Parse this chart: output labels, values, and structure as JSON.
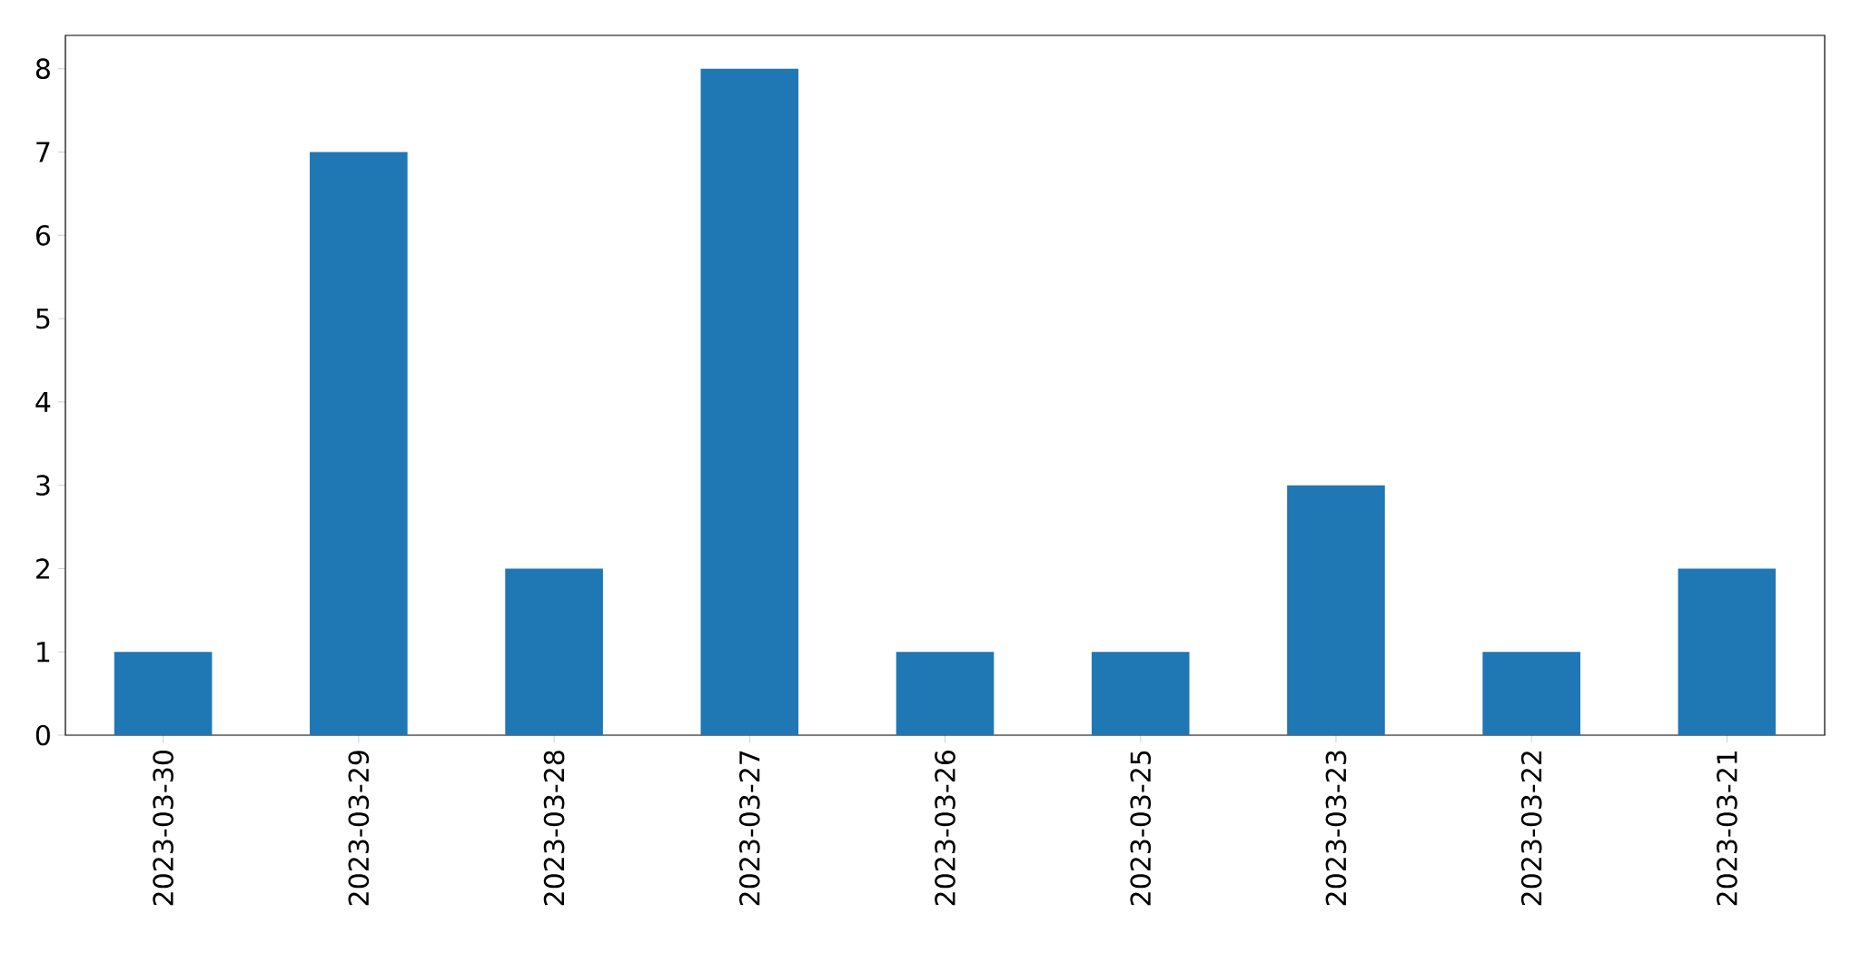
{
  "chart_data": {
    "type": "bar",
    "categories": [
      "2023-03-30",
      "2023-03-29",
      "2023-03-28",
      "2023-03-27",
      "2023-03-26",
      "2023-03-25",
      "2023-03-23",
      "2023-03-22",
      "2023-03-21"
    ],
    "values": [
      1,
      7,
      2,
      8,
      1,
      1,
      3,
      1,
      2
    ],
    "color": "#1f77b4",
    "ylim": [
      0,
      8.4
    ],
    "yticks": [
      0,
      1,
      2,
      3,
      4,
      5,
      6,
      7,
      8
    ]
  }
}
